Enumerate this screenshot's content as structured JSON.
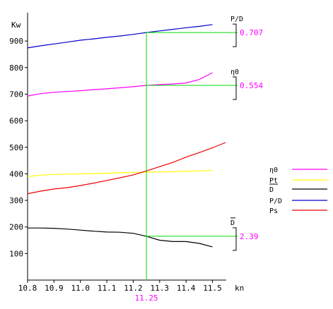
{
  "chart_data": {
    "type": "line",
    "ylabel": "Kw",
    "xlabel": "kn",
    "xlim": [
      10.8,
      11.55
    ],
    "ylim": [
      0,
      1000
    ],
    "x_ticks": [
      "10.8",
      "10.9",
      "11.0",
      "11.1",
      "11.2",
      "11.3",
      "11.4",
      "11.5"
    ],
    "y_ticks": [
      "100",
      "200",
      "300",
      "400",
      "500",
      "600",
      "700",
      "800",
      "900"
    ],
    "grid": false,
    "legend_position": "right",
    "cursor": {
      "x": 11.25,
      "label": "11.25"
    },
    "series": [
      {
        "name": "η0",
        "legend_label": "η0",
        "color": "#ff00ff",
        "annotation_title": "η0",
        "annotation_value": "0.554",
        "points": [
          [
            10.8,
            693
          ],
          [
            10.85,
            702
          ],
          [
            10.9,
            707
          ],
          [
            10.95,
            710
          ],
          [
            11.0,
            713
          ],
          [
            11.05,
            717
          ],
          [
            11.1,
            720
          ],
          [
            11.15,
            724
          ],
          [
            11.2,
            728
          ],
          [
            11.25,
            733
          ],
          [
            11.3,
            736
          ],
          [
            11.35,
            738
          ],
          [
            11.4,
            742
          ],
          [
            11.45,
            755
          ],
          [
            11.5,
            781
          ]
        ]
      },
      {
        "name": "Pt",
        "legend_label": "Pt",
        "color": "#ffff00",
        "points": [
          [
            10.8,
            390
          ],
          [
            10.85,
            395
          ],
          [
            10.9,
            398
          ],
          [
            10.95,
            399
          ],
          [
            11.0,
            400
          ],
          [
            11.05,
            401
          ],
          [
            11.1,
            402
          ],
          [
            11.15,
            404
          ],
          [
            11.2,
            405
          ],
          [
            11.25,
            406
          ],
          [
            11.3,
            407
          ],
          [
            11.35,
            408
          ],
          [
            11.4,
            410
          ],
          [
            11.45,
            411
          ],
          [
            11.5,
            413
          ]
        ]
      },
      {
        "name": "D",
        "legend_label": "D",
        "color": "#000000",
        "annotation_title": "D",
        "annotation_value": "2.39",
        "points": [
          [
            10.8,
            196
          ],
          [
            10.85,
            196
          ],
          [
            10.9,
            195
          ],
          [
            10.95,
            192
          ],
          [
            11.0,
            188
          ],
          [
            11.05,
            184
          ],
          [
            11.1,
            181
          ],
          [
            11.15,
            180
          ],
          [
            11.2,
            176
          ],
          [
            11.25,
            165
          ],
          [
            11.3,
            150
          ],
          [
            11.35,
            145
          ],
          [
            11.4,
            145
          ],
          [
            11.45,
            138
          ],
          [
            11.5,
            125
          ]
        ]
      },
      {
        "name": "P/D",
        "legend_label": "P/D",
        "color": "#0000cc",
        "annotation_title": "P/D",
        "annotation_value": "0.707",
        "points": [
          [
            10.8,
            874
          ],
          [
            10.85,
            882
          ],
          [
            10.9,
            889
          ],
          [
            10.95,
            896
          ],
          [
            11.0,
            903
          ],
          [
            11.05,
            908
          ],
          [
            11.1,
            914
          ],
          [
            11.15,
            919
          ],
          [
            11.2,
            925
          ],
          [
            11.25,
            932
          ],
          [
            11.3,
            938
          ],
          [
            11.35,
            944
          ],
          [
            11.4,
            950
          ],
          [
            11.45,
            955
          ],
          [
            11.5,
            962
          ]
        ]
      },
      {
        "name": "Ps",
        "legend_label": "Ps",
        "color": "#ee0000",
        "points": [
          [
            10.8,
            325
          ],
          [
            10.85,
            335
          ],
          [
            10.9,
            343
          ],
          [
            10.95,
            348
          ],
          [
            11.0,
            356
          ],
          [
            11.05,
            365
          ],
          [
            11.1,
            375
          ],
          [
            11.15,
            385
          ],
          [
            11.2,
            396
          ],
          [
            11.25,
            411
          ],
          [
            11.3,
            427
          ],
          [
            11.35,
            443
          ],
          [
            11.4,
            463
          ],
          [
            11.45,
            480
          ],
          [
            11.5,
            498
          ],
          [
            11.55,
            518
          ]
        ]
      }
    ]
  }
}
